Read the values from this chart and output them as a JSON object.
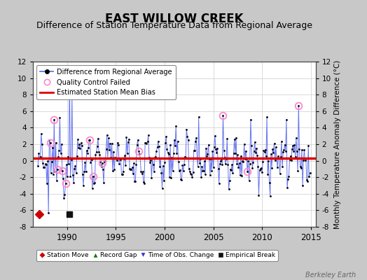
{
  "title": "EAST WILLOW CREEK",
  "subtitle": "Difference of Station Temperature Data from Regional Average",
  "ylabel_right": "Monthly Temperature Anomaly Difference (°C)",
  "ylim": [
    -8,
    12
  ],
  "yticks": [
    -8,
    -6,
    -4,
    -2,
    0,
    2,
    4,
    6,
    8,
    10,
    12
  ],
  "xlim": [
    1986.5,
    2015.5
  ],
  "xticks": [
    1990,
    1995,
    2000,
    2005,
    2010,
    2015
  ],
  "bias_level": 0.3,
  "fig_bg_color": "#c8c8c8",
  "plot_bg_color": "#ffffff",
  "line_color": "#5566ee",
  "dot_color": "#000000",
  "bias_color": "#dd0000",
  "qc_color": "#ff88cc",
  "title_fontsize": 12,
  "subtitle_fontsize": 9,
  "watermark": "Berkeley Earth",
  "seed": 12345
}
